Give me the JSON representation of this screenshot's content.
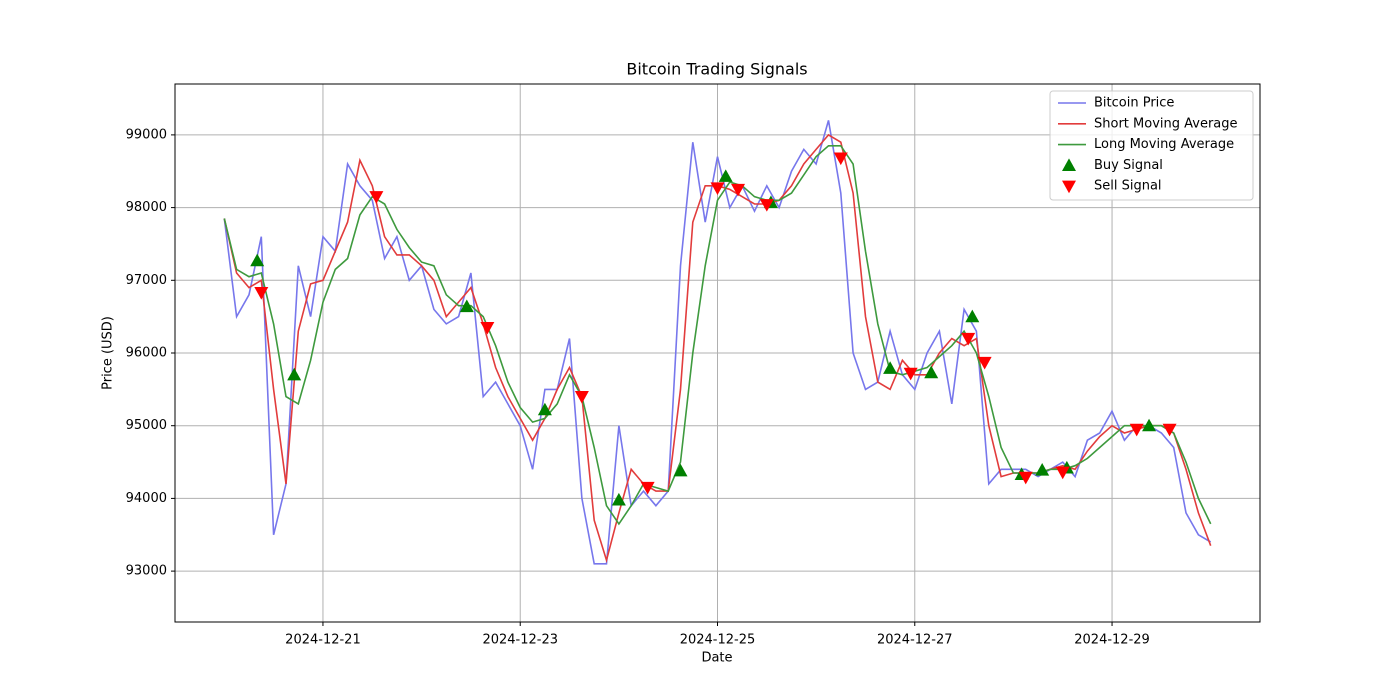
{
  "chart_data": {
    "type": "line",
    "title": "Bitcoin Trading Signals",
    "x_label": "Date",
    "y_label": "Price (USD)",
    "grid": true,
    "legend": "upper right",
    "xlim": [
      "2024-12-19 12:00",
      "2024-12-30 12:00"
    ],
    "xticks": [
      "2024-12-21",
      "2024-12-23",
      "2024-12-25",
      "2024-12-27",
      "2024-12-29"
    ],
    "ylim": [
      92300,
      99700
    ],
    "yticks": [
      93000,
      94000,
      95000,
      96000,
      97000,
      98000,
      99000
    ],
    "x": [
      "2024-12-20 00:00",
      "2024-12-20 03:00",
      "2024-12-20 06:00",
      "2024-12-20 09:00",
      "2024-12-20 12:00",
      "2024-12-20 15:00",
      "2024-12-20 18:00",
      "2024-12-20 21:00",
      "2024-12-21 00:00",
      "2024-12-21 03:00",
      "2024-12-21 06:00",
      "2024-12-21 09:00",
      "2024-12-21 12:00",
      "2024-12-21 15:00",
      "2024-12-21 18:00",
      "2024-12-21 21:00",
      "2024-12-22 00:00",
      "2024-12-22 03:00",
      "2024-12-22 06:00",
      "2024-12-22 09:00",
      "2024-12-22 12:00",
      "2024-12-22 15:00",
      "2024-12-22 18:00",
      "2024-12-22 21:00",
      "2024-12-23 00:00",
      "2024-12-23 03:00",
      "2024-12-23 06:00",
      "2024-12-23 09:00",
      "2024-12-23 12:00",
      "2024-12-23 15:00",
      "2024-12-23 18:00",
      "2024-12-23 21:00",
      "2024-12-24 00:00",
      "2024-12-24 03:00",
      "2024-12-24 06:00",
      "2024-12-24 09:00",
      "2024-12-24 12:00",
      "2024-12-24 15:00",
      "2024-12-24 18:00",
      "2024-12-24 21:00",
      "2024-12-25 00:00",
      "2024-12-25 03:00",
      "2024-12-25 06:00",
      "2024-12-25 09:00",
      "2024-12-25 12:00",
      "2024-12-25 15:00",
      "2024-12-25 18:00",
      "2024-12-25 21:00",
      "2024-12-26 00:00",
      "2024-12-26 03:00",
      "2024-12-26 06:00",
      "2024-12-26 09:00",
      "2024-12-26 12:00",
      "2024-12-26 15:00",
      "2024-12-26 18:00",
      "2024-12-26 21:00",
      "2024-12-27 00:00",
      "2024-12-27 03:00",
      "2024-12-27 06:00",
      "2024-12-27 09:00",
      "2024-12-27 12:00",
      "2024-12-27 15:00",
      "2024-12-27 18:00",
      "2024-12-27 21:00",
      "2024-12-28 00:00",
      "2024-12-28 03:00",
      "2024-12-28 06:00",
      "2024-12-28 09:00",
      "2024-12-28 12:00",
      "2024-12-28 15:00",
      "2024-12-28 18:00",
      "2024-12-28 21:00",
      "2024-12-29 00:00",
      "2024-12-29 03:00",
      "2024-12-29 06:00",
      "2024-12-29 09:00",
      "2024-12-29 12:00",
      "2024-12-29 15:00",
      "2024-12-29 18:00",
      "2024-12-29 21:00",
      "2024-12-30 00:00"
    ],
    "series": [
      {
        "name": "Bitcoin Price",
        "color": "#7777ec",
        "values": [
          97850,
          96500,
          96800,
          97600,
          93500,
          94200,
          97200,
          96500,
          97600,
          97400,
          98600,
          98300,
          98100,
          97300,
          97600,
          97000,
          97200,
          96600,
          96400,
          96500,
          97100,
          95400,
          95600,
          95300,
          95000,
          94400,
          95500,
          95500,
          96200,
          94000,
          93100,
          93100,
          95000,
          93900,
          94100,
          93900,
          94100,
          97200,
          98900,
          97800,
          98700,
          98000,
          98300,
          97950,
          98300,
          98000,
          98500,
          98800,
          98600,
          99200,
          98200,
          96000,
          95500,
          95600,
          96300,
          95700,
          95500,
          96000,
          96300,
          95300,
          96600,
          96300,
          94200,
          94400,
          94400,
          94400,
          94300,
          94400,
          94500,
          94300,
          94800,
          94900,
          95200,
          94800,
          95000,
          95000,
          94900,
          94700,
          93800,
          93500,
          93400
        ]
      },
      {
        "name": "Short Moving Average",
        "color": "#e23c3c",
        "values": [
          97850,
          97100,
          96900,
          97000,
          95500,
          94200,
          96300,
          96950,
          97000,
          97400,
          97800,
          98650,
          98300,
          97600,
          97350,
          97350,
          97200,
          97000,
          96500,
          96700,
          96900,
          96400,
          95800,
          95400,
          95100,
          94800,
          95100,
          95500,
          95800,
          95400,
          93700,
          93150,
          93800,
          94400,
          94200,
          94100,
          94100,
          95500,
          97800,
          98300,
          98300,
          98250,
          98150,
          98050,
          98050,
          98100,
          98300,
          98600,
          98800,
          99000,
          98900,
          98200,
          96500,
          95600,
          95500,
          95900,
          95700,
          95700,
          96000,
          96200,
          96100,
          96200,
          95000,
          94300,
          94350,
          94350,
          94350,
          94400,
          94450,
          94400,
          94650,
          94850,
          95000,
          94900,
          94950,
          95000,
          95000,
          94900,
          94400,
          93800,
          93350
        ]
      },
      {
        "name": "Long Moving Average",
        "color": "#3e9a3e",
        "values": [
          97850,
          97150,
          97050,
          97100,
          96400,
          95400,
          95300,
          95900,
          96700,
          97150,
          97300,
          97900,
          98150,
          98050,
          97700,
          97450,
          97250,
          97200,
          96800,
          96650,
          96650,
          96500,
          96100,
          95600,
          95250,
          95050,
          95100,
          95300,
          95700,
          95400,
          94700,
          93900,
          93650,
          93900,
          94200,
          94150,
          94100,
          94500,
          96000,
          97200,
          98100,
          98350,
          98300,
          98150,
          98100,
          98100,
          98200,
          98450,
          98700,
          98850,
          98850,
          98600,
          97400,
          96400,
          95750,
          95700,
          95750,
          95800,
          95950,
          96100,
          96300,
          96000,
          95400,
          94700,
          94350,
          94350,
          94350,
          94400,
          94400,
          94450,
          94550,
          94700,
          94850,
          95000,
          95000,
          95000,
          95000,
          94900,
          94500,
          94000,
          93650
        ]
      },
      {
        "name": "Buy Signal",
        "type": "scatter",
        "marker": "up",
        "color": "#008000",
        "x": [
          "2024-12-20 08:00",
          "2024-12-20 17:00",
          "2024-12-22 11:00",
          "2024-12-23 06:00",
          "2024-12-24 00:00",
          "2024-12-24 15:00",
          "2024-12-25 02:00",
          "2024-12-25 13:00",
          "2024-12-26 18:00",
          "2024-12-27 04:00",
          "2024-12-27 14:00",
          "2024-12-28 02:00",
          "2024-12-28 07:00",
          "2024-12-28 13:00",
          "2024-12-29 09:00"
        ],
        "values": [
          97270,
          95700,
          96640,
          95220,
          93980,
          94380,
          98430,
          98070,
          95790,
          95730,
          96500,
          94330,
          94390,
          94420,
          95000
        ]
      },
      {
        "name": "Sell Signal",
        "type": "scatter",
        "marker": "down",
        "color": "#ff0000",
        "x": [
          "2024-12-20 09:00",
          "2024-12-21 13:00",
          "2024-12-22 16:00",
          "2024-12-23 15:00",
          "2024-12-24 07:00",
          "2024-12-25 00:00",
          "2024-12-25 05:00",
          "2024-12-25 12:00",
          "2024-12-26 06:00",
          "2024-12-26 23:00",
          "2024-12-27 13:00",
          "2024-12-27 17:00",
          "2024-12-28 03:00",
          "2024-12-28 12:00",
          "2024-12-29 06:00",
          "2024-12-29 14:00"
        ],
        "values": [
          96830,
          98150,
          96350,
          95400,
          94150,
          98270,
          98250,
          98040,
          98680,
          95720,
          96200,
          95870,
          94290,
          94360,
          94950,
          94950
        ]
      }
    ]
  }
}
